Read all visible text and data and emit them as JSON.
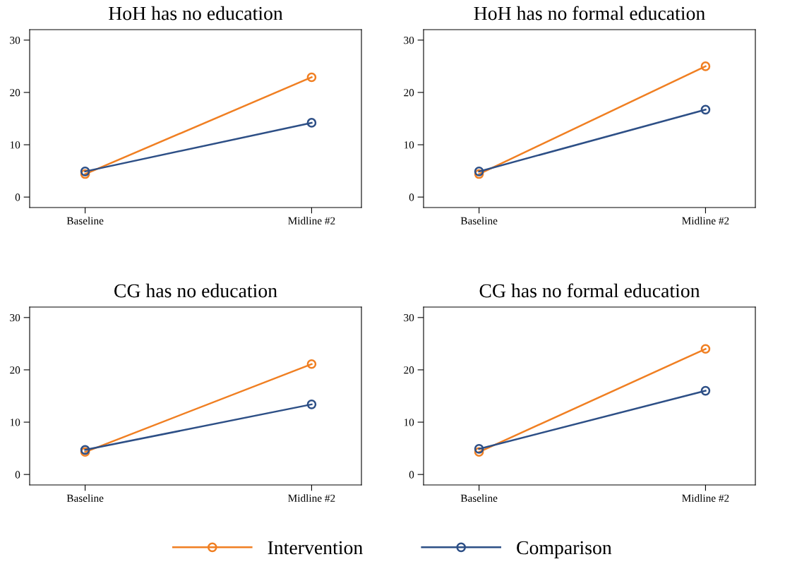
{
  "chart_data": [
    {
      "type": "line",
      "title": "HoH has no education",
      "categories": [
        "Baseline",
        "Midline #2"
      ],
      "ylim": [
        -2,
        32
      ],
      "yticks": [
        0,
        10,
        20,
        30
      ],
      "grid": false,
      "marker": "circle",
      "legend": "bottom",
      "series": [
        {
          "name": "Intervention",
          "color": "#f07f22",
          "values": [
            4.4,
            22.9
          ]
        },
        {
          "name": "Comparison",
          "color": "#2d4f86",
          "values": [
            4.9,
            14.2
          ]
        }
      ]
    },
    {
      "type": "line",
      "title": "HoH has no formal education",
      "categories": [
        "Baseline",
        "Midline #2"
      ],
      "ylim": [
        -2,
        32
      ],
      "yticks": [
        0,
        10,
        20,
        30
      ],
      "grid": false,
      "marker": "circle",
      "legend": "bottom",
      "series": [
        {
          "name": "Intervention",
          "color": "#f07f22",
          "values": [
            4.4,
            25.0
          ]
        },
        {
          "name": "Comparison",
          "color": "#2d4f86",
          "values": [
            4.9,
            16.7
          ]
        }
      ]
    },
    {
      "type": "line",
      "title": "CG has no education",
      "categories": [
        "Baseline",
        "Midline #2"
      ],
      "ylim": [
        -2,
        32
      ],
      "yticks": [
        0,
        10,
        20,
        30
      ],
      "grid": false,
      "marker": "circle",
      "legend": "bottom",
      "series": [
        {
          "name": "Intervention",
          "color": "#f07f22",
          "values": [
            4.3,
            21.1
          ]
        },
        {
          "name": "Comparison",
          "color": "#2d4f86",
          "values": [
            4.7,
            13.4
          ]
        }
      ]
    },
    {
      "type": "line",
      "title": "CG has no formal education",
      "categories": [
        "Baseline",
        "Midline #2"
      ],
      "ylim": [
        -2,
        32
      ],
      "yticks": [
        0,
        10,
        20,
        30
      ],
      "grid": false,
      "marker": "circle",
      "legend": "bottom",
      "series": [
        {
          "name": "Intervention",
          "color": "#f07f22",
          "values": [
            4.3,
            24.0
          ]
        },
        {
          "name": "Comparison",
          "color": "#2d4f86",
          "values": [
            4.9,
            16.0
          ]
        }
      ]
    }
  ]
}
